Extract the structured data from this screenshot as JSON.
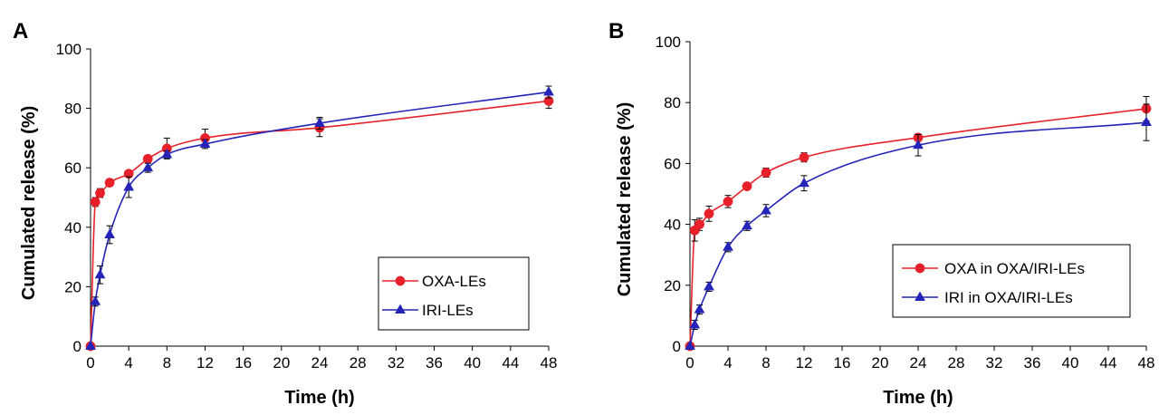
{
  "chart_data": [
    {
      "panel_label": "A",
      "type": "line",
      "xlabel": "Time (h)",
      "ylabel": "Cumulated release (%)",
      "xlim": [
        0,
        48
      ],
      "ylim": [
        0,
        100
      ],
      "xticks": [
        0,
        4,
        8,
        12,
        16,
        20,
        24,
        28,
        32,
        36,
        40,
        44,
        48
      ],
      "yticks": [
        0,
        20,
        40,
        60,
        80,
        100
      ],
      "grid": false,
      "legend_position": "right",
      "series": [
        {
          "name": "OXA-LEs",
          "color": "#e8202a",
          "marker": "circle",
          "x": [
            0,
            0.5,
            1,
            2,
            4,
            6,
            8,
            12,
            24,
            48
          ],
          "y": [
            0,
            48.5,
            51.5,
            55,
            58,
            63,
            66.5,
            70,
            73.5,
            82.5
          ],
          "err": [
            0,
            1.5,
            1.5,
            1.2,
            1.0,
            1.2,
            3.5,
            3.0,
            3.0,
            2.5
          ]
        },
        {
          "name": "IRI-LEs",
          "color": "#2424b8",
          "marker": "triangle",
          "x": [
            0,
            0.5,
            1,
            2,
            4,
            6,
            8,
            12,
            24,
            48
          ],
          "y": [
            0,
            15,
            24,
            37.5,
            53.5,
            60,
            64.5,
            68,
            75,
            85.5
          ],
          "err": [
            0,
            1.5,
            3.0,
            3.0,
            3.5,
            1.5,
            1.2,
            1.5,
            2.0,
            2.0
          ]
        }
      ]
    },
    {
      "panel_label": "B",
      "type": "line",
      "xlabel": "Time (h)",
      "ylabel": "Cumulated release (%)",
      "xlim": [
        0,
        48
      ],
      "ylim": [
        0,
        100
      ],
      "xticks": [
        0,
        4,
        8,
        12,
        16,
        20,
        24,
        28,
        32,
        36,
        40,
        44,
        48
      ],
      "yticks": [
        0,
        20,
        40,
        60,
        80,
        100
      ],
      "grid": false,
      "legend_position": "right",
      "series": [
        {
          "name": "OXA in OXA/IRI-LEs",
          "color": "#e8202a",
          "marker": "circle",
          "x": [
            0,
            0.5,
            1,
            2,
            4,
            6,
            8,
            12,
            24,
            48
          ],
          "y": [
            0,
            38,
            40,
            43.5,
            47.5,
            52.5,
            57,
            62,
            68.5,
            78
          ],
          "err": [
            0,
            3.5,
            2.0,
            2.5,
            2.0,
            1.0,
            1.5,
            1.5,
            1.2,
            4.0
          ]
        },
        {
          "name": "IRI in OXA/IRI-LEs",
          "color": "#2424b8",
          "marker": "triangle",
          "x": [
            0,
            0.5,
            1,
            2,
            4,
            6,
            8,
            12,
            24,
            48
          ],
          "y": [
            0,
            7,
            12,
            19.5,
            32.5,
            39.5,
            44.5,
            53.5,
            66,
            73.5
          ],
          "err": [
            0,
            1.5,
            1.5,
            1.5,
            1.5,
            1.5,
            2.0,
            2.5,
            3.5,
            6.0
          ]
        }
      ]
    }
  ]
}
